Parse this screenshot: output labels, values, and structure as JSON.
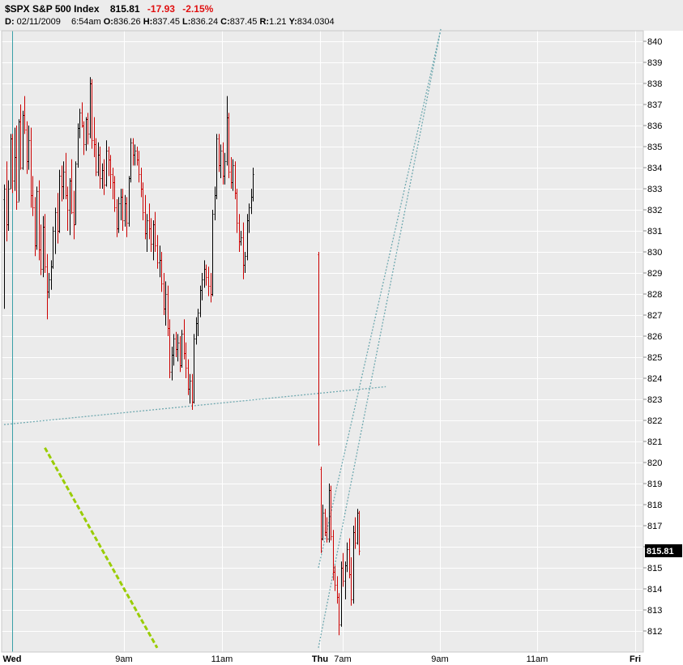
{
  "header": {
    "symbol": "$SPX",
    "name": "S&P 500 Index",
    "last": "815.81",
    "change": "-17.93",
    "change_pct": "-2.15%",
    "date_label": "D:",
    "date": "02/11/2009",
    "time": "6:54am",
    "open_label": "O:",
    "open": "836.26",
    "high_label": "H:",
    "high": "837.45",
    "low_label": "L:",
    "low": "836.24",
    "close_label": "C:",
    "close": "837.45",
    "range_label": "R:",
    "range": "1.21",
    "y_label": "Y:",
    "y": "834.0304"
  },
  "colors": {
    "up": "#000000",
    "down": "#cc0000",
    "grid": "#ffffff",
    "plot_bg": "#ebebeb",
    "trendline": "#5b9ea6",
    "green_line": "#99cc00",
    "last_badge_bg": "#000000",
    "last_badge_fg": "#ffffff"
  },
  "chart_data": {
    "type": "ohlc",
    "title": "$SPX S&P 500 Index",
    "y_axis": {
      "ticks": [
        812,
        813,
        814,
        815,
        816,
        817,
        818,
        819,
        820,
        821,
        822,
        823,
        824,
        825,
        826,
        827,
        828,
        829,
        830,
        831,
        832,
        833,
        834,
        835,
        836,
        837,
        838,
        839,
        840
      ],
      "tick_labels": [
        "812",
        "813",
        "814",
        "815",
        "",
        "817",
        "818",
        "819",
        "820",
        "821",
        "822",
        "823",
        "824",
        "825",
        "826",
        "827",
        "828",
        "829",
        "830",
        "831",
        "832",
        "833",
        "834",
        "835",
        "836",
        "837",
        "838",
        "839",
        "840"
      ],
      "ylim": [
        811,
        840.5
      ],
      "last_value": 815.81,
      "last_label": "815.81"
    },
    "x_axis": {
      "labels": [
        "Wed",
        "9am",
        "11am",
        "Thu",
        "7am",
        "9am",
        "11am",
        "Fri"
      ],
      "bold": [
        true,
        false,
        false,
        true,
        false,
        false,
        false,
        true
      ]
    },
    "sessions": [
      {
        "day": "Wed",
        "bars": [
          [
            832.5,
            833.2,
            827.3,
            833.0
          ],
          [
            833.0,
            834.3,
            830.5,
            831.3
          ],
          [
            831.3,
            833.4,
            831.0,
            833.0
          ],
          [
            833.0,
            835.6,
            833.0,
            835.4
          ],
          [
            835.4,
            835.6,
            832.8,
            833.4
          ],
          [
            833.4,
            835.9,
            832.9,
            834.5
          ],
          [
            834.5,
            836.0,
            832.0,
            832.4
          ],
          [
            832.4,
            836.3,
            832.4,
            836.2
          ],
          [
            836.2,
            837.0,
            833.9,
            834.0
          ],
          [
            834.0,
            836.7,
            833.9,
            836.5
          ],
          [
            836.5,
            837.4,
            835.6,
            835.8
          ],
          [
            835.8,
            836.2,
            833.7,
            834.3
          ],
          [
            834.3,
            836.0,
            833.9,
            835.3
          ],
          [
            835.3,
            835.9,
            832.1,
            832.7
          ],
          [
            832.7,
            833.6,
            831.7,
            832.1
          ],
          [
            832.1,
            832.6,
            829.8,
            830.3
          ],
          [
            830.3,
            833.1,
            830.1,
            832.9
          ],
          [
            832.9,
            833.4,
            829.6,
            830.1
          ],
          [
            830.1,
            831.3,
            828.9,
            829.2
          ],
          [
            829.2,
            831.7,
            828.8,
            831.2
          ],
          [
            831.2,
            831.8,
            829.0,
            829.3
          ],
          [
            829.3,
            829.9,
            826.8,
            828.1
          ],
          [
            828.1,
            829.0,
            827.8,
            828.7
          ],
          [
            828.7,
            829.6,
            828.2,
            829.3
          ],
          [
            829.3,
            831.2,
            829.2,
            831.0
          ],
          [
            831.0,
            832.1,
            829.9,
            831.9
          ],
          [
            831.9,
            832.8,
            830.4,
            831.0
          ],
          [
            831.0,
            833.9,
            830.9,
            833.6
          ],
          [
            833.6,
            834.1,
            832.4,
            833.1
          ],
          [
            833.1,
            834.3,
            832.5,
            833.8
          ],
          [
            833.8,
            834.7,
            832.5,
            832.7
          ],
          [
            832.7,
            833.1,
            831.0,
            832.0
          ],
          [
            832.0,
            833.5,
            830.8,
            833.4
          ],
          [
            833.4,
            834.4,
            831.8,
            831.9
          ],
          [
            831.9,
            832.9,
            830.6,
            831.3
          ],
          [
            831.3,
            834.3,
            831.3,
            834.2
          ],
          [
            834.2,
            836.1,
            834.0,
            835.9
          ],
          [
            835.9,
            836.8,
            835.4,
            836.6
          ],
          [
            836.6,
            837.1,
            835.9,
            836.0
          ],
          [
            836.0,
            836.2,
            834.6,
            835.1
          ],
          [
            835.1,
            836.4,
            834.8,
            836.3
          ],
          [
            836.3,
            836.6,
            835.1,
            835.6
          ],
          [
            835.6,
            838.3,
            835.4,
            838.0
          ],
          [
            838.0,
            838.2,
            834.9,
            835.3
          ],
          [
            835.3,
            836.4,
            834.5,
            835.1
          ],
          [
            835.1,
            835.4,
            833.6,
            833.8
          ],
          [
            833.8,
            835.2,
            833.6,
            834.6
          ],
          [
            834.6,
            835.0,
            833.0,
            833.5
          ],
          [
            833.5,
            834.2,
            833.0,
            833.9
          ],
          [
            833.9,
            834.4,
            832.7,
            833.2
          ],
          [
            833.2,
            835.3,
            833.1,
            834.8
          ],
          [
            834.8,
            835.0,
            833.6,
            834.4
          ],
          [
            834.4,
            834.6,
            833.0,
            833.7
          ],
          [
            833.7,
            834.0,
            832.5,
            833.3
          ],
          [
            833.3,
            833.6,
            831.9,
            832.1
          ],
          [
            832.1,
            832.5,
            830.7,
            831.1
          ],
          [
            831.1,
            832.6,
            830.9,
            832.3
          ],
          [
            832.3,
            833.0,
            831.5,
            832.6
          ],
          [
            832.6,
            833.0,
            831.0,
            831.5
          ],
          [
            831.5,
            832.7,
            831.2,
            832.3
          ],
          [
            832.3,
            832.6,
            830.7,
            831.4
          ],
          [
            831.4,
            833.6,
            831.2,
            833.5
          ],
          [
            833.5,
            835.4,
            833.3,
            835.2
          ],
          [
            835.2,
            835.4,
            834.1,
            834.6
          ],
          [
            834.6,
            835.1,
            834.1,
            834.8
          ],
          [
            834.8,
            835.0,
            834.1,
            834.4
          ],
          [
            834.4,
            834.8,
            833.3,
            833.7
          ],
          [
            833.7,
            834.0,
            832.6,
            833.0
          ],
          [
            833.0,
            833.3,
            831.5,
            831.9
          ],
          [
            831.9,
            832.7,
            830.6,
            830.9
          ],
          [
            830.9,
            831.8,
            830.0,
            831.5
          ],
          [
            831.5,
            832.3,
            830.6,
            831.1
          ],
          [
            831.1,
            831.6,
            830.0,
            830.4
          ],
          [
            830.4,
            831.5,
            829.6,
            831.3
          ],
          [
            831.3,
            831.9,
            830.0,
            830.3
          ],
          [
            830.3,
            830.8,
            829.2,
            829.5
          ],
          [
            829.5,
            830.3,
            828.8,
            829.6
          ],
          [
            829.6,
            830.0,
            828.1,
            828.5
          ],
          [
            828.5,
            829.0,
            827.0,
            827.3
          ],
          [
            827.3,
            828.6,
            826.5,
            828.0
          ],
          [
            828.0,
            828.4,
            826.0,
            826.4
          ],
          [
            826.4,
            826.8,
            824.0,
            824.3
          ],
          [
            824.3,
            825.5,
            823.9,
            825.1
          ],
          [
            825.1,
            826.1,
            824.6,
            825.9
          ],
          [
            825.9,
            826.2,
            825.0,
            825.4
          ],
          [
            825.4,
            826.1,
            824.8,
            825.7
          ],
          [
            825.7,
            826.0,
            824.3,
            824.6
          ],
          [
            824.6,
            826.3,
            824.5,
            826.1
          ],
          [
            826.1,
            826.8,
            824.9,
            825.2
          ],
          [
            825.2,
            825.7,
            824.0,
            824.5
          ],
          [
            824.5,
            824.9,
            823.2,
            823.5
          ],
          [
            823.5,
            824.2,
            822.8,
            823.9
          ],
          [
            823.9,
            824.2,
            822.5,
            822.9
          ],
          [
            822.9,
            826.1,
            822.8,
            825.9
          ],
          [
            825.9,
            826.9,
            825.6,
            826.6
          ],
          [
            826.6,
            827.3,
            826.0,
            827.1
          ],
          [
            827.1,
            828.4,
            826.9,
            828.2
          ],
          [
            828.2,
            829.0,
            827.7,
            828.7
          ],
          [
            828.7,
            829.6,
            828.3,
            829.2
          ],
          [
            829.2,
            829.4,
            828.4,
            828.8
          ],
          [
            828.8,
            829.3,
            827.9,
            828.4
          ],
          [
            828.4,
            829.0,
            827.6,
            828.0
          ],
          [
            828.0,
            832.0,
            827.9,
            831.8
          ],
          [
            831.8,
            833.1,
            831.5,
            832.7
          ],
          [
            832.7,
            835.6,
            832.5,
            835.4
          ],
          [
            835.4,
            835.6,
            833.8,
            834.1
          ],
          [
            834.1,
            835.1,
            833.5,
            834.8
          ],
          [
            834.8,
            835.2,
            833.2,
            833.6
          ],
          [
            833.6,
            834.7,
            833.2,
            834.3
          ],
          [
            834.3,
            837.4,
            834.1,
            836.4
          ],
          [
            836.4,
            836.6,
            833.5,
            833.8
          ],
          [
            833.8,
            834.5,
            833.0,
            833.3
          ],
          [
            833.3,
            834.4,
            832.9,
            834.1
          ],
          [
            834.1,
            834.3,
            832.5,
            832.8
          ],
          [
            832.8,
            833.0,
            830.9,
            831.4
          ],
          [
            831.4,
            831.8,
            830.0,
            830.5
          ],
          [
            830.5,
            831.0,
            830.3,
            830.7
          ],
          [
            830.7,
            831.4,
            828.7,
            829.4
          ],
          [
            829.4,
            830.0,
            829.0,
            829.8
          ],
          [
            829.8,
            831.8,
            829.6,
            831.5
          ],
          [
            831.5,
            832.3,
            830.9,
            832.1
          ],
          [
            832.1,
            833.0,
            831.8,
            832.6
          ],
          [
            832.6,
            834.0,
            832.4,
            833.7
          ]
        ]
      },
      {
        "day": "Thu",
        "bars": [
          [
            829.9,
            830.0,
            820.8,
            820.9
          ],
          [
            819.7,
            819.8,
            815.7,
            816.4
          ],
          [
            816.4,
            818.0,
            816.3,
            817.6
          ],
          [
            817.6,
            817.8,
            816.5,
            816.7
          ],
          [
            816.7,
            817.4,
            816.2,
            816.4
          ],
          [
            816.4,
            819.0,
            816.2,
            818.7
          ],
          [
            818.7,
            818.9,
            816.3,
            816.5
          ],
          [
            816.5,
            816.8,
            814.4,
            814.8
          ],
          [
            814.8,
            815.1,
            813.9,
            814.2
          ],
          [
            814.2,
            814.6,
            813.3,
            813.6
          ],
          [
            813.6,
            813.8,
            811.8,
            812.3
          ],
          [
            812.3,
            815.3,
            812.2,
            815.0
          ],
          [
            815.0,
            815.7,
            814.1,
            814.4
          ],
          [
            814.4,
            815.3,
            813.5,
            815.1
          ],
          [
            815.1,
            816.2,
            814.8,
            815.9
          ],
          [
            815.9,
            816.4,
            814.5,
            814.7
          ],
          [
            814.7,
            815.5,
            813.2,
            813.5
          ],
          [
            813.5,
            817.0,
            813.3,
            816.7
          ],
          [
            816.7,
            817.4,
            815.9,
            816.2
          ],
          [
            816.2,
            817.8,
            816.1,
            817.6
          ],
          [
            817.6,
            817.7,
            815.6,
            815.8
          ]
        ]
      }
    ],
    "trendlines": [
      {
        "kind": "dotted",
        "from": {
          "session": "Wed",
          "bar": 0,
          "price": 821.8
        },
        "to": {
          "session": "Thu",
          "bar": 33,
          "price": 823.6
        }
      },
      {
        "kind": "dotted",
        "from": {
          "session": "Thu",
          "bar": 0,
          "price": 811.2
        },
        "to": {
          "session": "Thu",
          "bar": 60,
          "price": 840.6
        }
      },
      {
        "kind": "dotted",
        "from": {
          "session": "Thu",
          "bar": 0,
          "price": 815.0
        },
        "to": {
          "session": "Thu",
          "bar": 60,
          "price": 840.6
        }
      },
      {
        "kind": "dashed-green",
        "from": {
          "session": "Wed",
          "bar": 20,
          "price": 820.7
        },
        "to": {
          "session": "Wed",
          "bar": 75,
          "price": 811.2
        }
      }
    ]
  }
}
